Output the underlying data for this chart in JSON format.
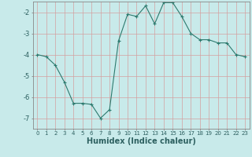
{
  "x": [
    0,
    1,
    2,
    3,
    4,
    5,
    6,
    7,
    8,
    9,
    10,
    11,
    12,
    13,
    14,
    15,
    16,
    17,
    18,
    19,
    20,
    21,
    22,
    23
  ],
  "y": [
    -4.0,
    -4.1,
    -4.5,
    -5.3,
    -6.3,
    -6.3,
    -6.35,
    -7.0,
    -6.6,
    -3.35,
    -2.1,
    -2.2,
    -1.7,
    -2.55,
    -1.55,
    -1.55,
    -2.2,
    -3.0,
    -3.3,
    -3.3,
    -3.45,
    -3.45,
    -4.0,
    -4.1
  ],
  "line_color": "#2d7a6e",
  "marker": "+",
  "marker_size": 3,
  "marker_linewidth": 0.8,
  "bg_color": "#c8eaea",
  "grid_color": "#d4a0a0",
  "xlabel": "Humidex (Indice chaleur)",
  "xlabel_fontsize": 7,
  "xlim": [
    -0.5,
    23.5
  ],
  "ylim": [
    -7.5,
    -1.5
  ],
  "yticks": [
    -2,
    -3,
    -4,
    -5,
    -6,
    -7
  ],
  "xticks": [
    0,
    1,
    2,
    3,
    4,
    5,
    6,
    7,
    8,
    9,
    10,
    11,
    12,
    13,
    14,
    15,
    16,
    17,
    18,
    19,
    20,
    21,
    22,
    23
  ],
  "tick_fontsize": 5,
  "linewidth": 0.8,
  "spine_color": "#888888"
}
